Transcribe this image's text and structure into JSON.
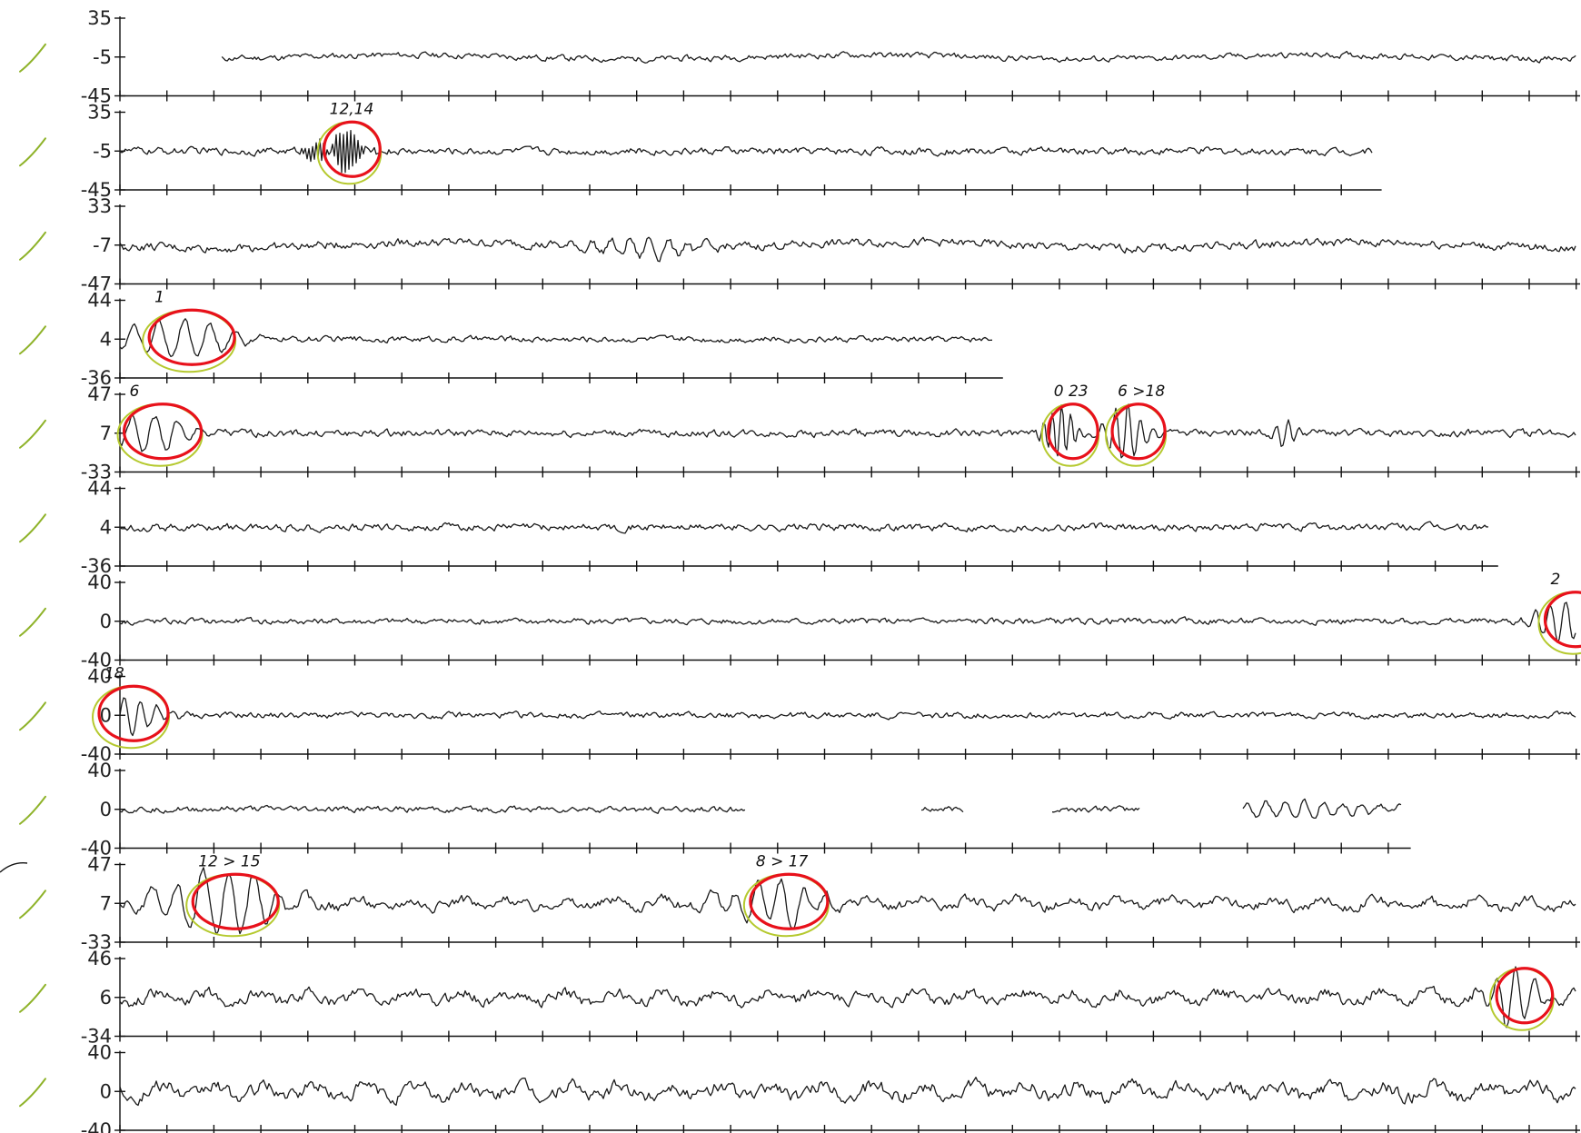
{
  "chart_data": {
    "type": "line",
    "title": "",
    "xlabel": "",
    "ylabel": "",
    "grid": false,
    "legend": "none",
    "colors": {
      "trace": "#1a1a1a",
      "red_mark": "#e8111b",
      "green_mark": "#b5c92e",
      "check": "#8fb32a"
    },
    "channels": [
      {
        "ticks": [
          "35",
          "-5",
          "-45"
        ],
        "ylim": [
          -45,
          35
        ],
        "x_range": [
          0.07,
          1.0
        ],
        "wave": {
          "amp": 5,
          "slow": 2,
          "fast": 0
        },
        "gaps": [],
        "events": []
      },
      {
        "ticks": [
          "35",
          "-5",
          "-45"
        ],
        "ylim": [
          -45,
          35
        ],
        "x_range": [
          0.0,
          0.86
        ],
        "wave": {
          "amp": 6,
          "slow": 0,
          "fast": 0
        },
        "gaps": [],
        "events": [
          {
            "x": 0.15,
            "amp": 24,
            "freq": 60,
            "width": 0.012,
            "circled": true,
            "note": "12,14"
          }
        ]
      },
      {
        "ticks": [
          "33",
          "-7",
          "-47"
        ],
        "ylim": [
          -47,
          33
        ],
        "x_range": [
          0.0,
          1.0
        ],
        "wave": {
          "amp": 7,
          "slow": 3,
          "fast": 0
        },
        "gaps": [],
        "events": [
          {
            "x": 0.36,
            "amp": 10,
            "freq": 12,
            "width": 0.03,
            "circled": false,
            "note": ""
          }
        ]
      },
      {
        "ticks": [
          "44",
          "4",
          "-36"
        ],
        "ylim": [
          -36,
          44
        ],
        "x_range": [
          0.0,
          0.6
        ],
        "wave": {
          "amp": 5,
          "slow": 0,
          "fast": 0
        },
        "gaps": [],
        "events": [
          {
            "x": 0.04,
            "amp": 20,
            "freq": 9,
            "width": 0.03,
            "circled": true,
            "note": "1"
          }
        ]
      },
      {
        "ticks": [
          "47",
          "7",
          "-33"
        ],
        "ylim": [
          -33,
          47
        ],
        "x_range": [
          0.0,
          1.0
        ],
        "wave": {
          "amp": 6,
          "slow": 0,
          "fast": 0
        },
        "gaps": [],
        "events": [
          {
            "x": 0.02,
            "amp": 18,
            "freq": 10,
            "width": 0.025,
            "circled": true,
            "note": "6"
          },
          {
            "x": 0.645,
            "amp": 26,
            "freq": 25,
            "width": 0.008,
            "circled": true,
            "note": "0 23"
          },
          {
            "x": 0.69,
            "amp": 30,
            "freq": 18,
            "width": 0.01,
            "circled": true,
            "note": "6 >18"
          },
          {
            "x": 0.8,
            "amp": 14,
            "freq": 20,
            "width": 0.005,
            "circled": false,
            "note": ""
          }
        ]
      },
      {
        "ticks": [
          "44",
          "4",
          "-36"
        ],
        "ylim": [
          -36,
          44
        ],
        "x_range": [
          0.0,
          0.94
        ],
        "wave": {
          "amp": 6,
          "slow": 0,
          "fast": 0
        },
        "gaps": [],
        "events": []
      },
      {
        "ticks": [
          "40",
          "0",
          "-40"
        ],
        "ylim": [
          -40,
          40
        ],
        "x_range": [
          0.0,
          1.0
        ],
        "wave": {
          "amp": 5,
          "slow": 0,
          "fast": 0
        },
        "gaps": [],
        "events": [
          {
            "x": 0.99,
            "amp": 20,
            "freq": 15,
            "width": 0.015,
            "circled": true,
            "note": "2"
          }
        ]
      },
      {
        "ticks": [
          "40",
          "0",
          "-40"
        ],
        "ylim": [
          -40,
          40
        ],
        "x_range": [
          0.0,
          1.0
        ],
        "wave": {
          "amp": 5,
          "slow": 0,
          "fast": 0
        },
        "gaps": [],
        "events": [
          {
            "x": 0.0,
            "amp": 20,
            "freq": 14,
            "width": 0.02,
            "circled": true,
            "note": "18"
          }
        ]
      },
      {
        "ticks": [
          "40",
          "0",
          "-40"
        ],
        "ylim": [
          -40,
          40
        ],
        "x_range": [
          0.0,
          0.88
        ],
        "wave": {
          "amp": 5,
          "slow": 0,
          "fast": 0
        },
        "gaps": [
          [
            0.43,
            0.55
          ],
          [
            0.58,
            0.64
          ],
          [
            0.7,
            0.77
          ]
        ],
        "events": [
          {
            "x": 0.81,
            "amp": 9,
            "freq": 12,
            "width": 0.04,
            "circled": false,
            "note": ""
          }
        ]
      },
      {
        "ticks": [
          "47",
          "7",
          "-33"
        ],
        "ylim": [
          -33,
          47
        ],
        "x_range": [
          0.0,
          1.0
        ],
        "wave": {
          "amp": 8,
          "slow": 0,
          "fast": 4
        },
        "gaps": [],
        "events": [
          {
            "x": 0.07,
            "amp": 32,
            "freq": 9,
            "width": 0.03,
            "circled": true,
            "note": "12 > 15"
          },
          {
            "x": 0.45,
            "amp": 24,
            "freq": 10,
            "width": 0.025,
            "circled": true,
            "note": "8 > 17"
          }
        ]
      },
      {
        "ticks": [
          "46",
          "6",
          "-34"
        ],
        "ylim": [
          -34,
          46
        ],
        "x_range": [
          0.0,
          1.0
        ],
        "wave": {
          "amp": 9,
          "slow": 0,
          "fast": 5
        },
        "gaps": [],
        "events": [
          {
            "x": 0.955,
            "amp": 30,
            "freq": 12,
            "width": 0.012,
            "circled": true,
            "note": ""
          }
        ]
      },
      {
        "ticks": [
          "40",
          "0",
          "-40"
        ],
        "ylim": [
          -40,
          40
        ],
        "x_range": [
          0.0,
          1.0
        ],
        "wave": {
          "amp": 11,
          "slow": 0,
          "fast": 6
        },
        "gaps": [],
        "events": []
      }
    ]
  }
}
